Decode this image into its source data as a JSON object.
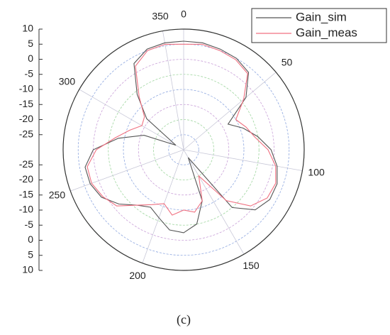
{
  "chart_data": {
    "type": "polar",
    "caption": "(c)",
    "theta": [
      0,
      10,
      20,
      30,
      40,
      50,
      60,
      70,
      80,
      90,
      100,
      110,
      120,
      130,
      140,
      150,
      160,
      170,
      180,
      190,
      200,
      210,
      220,
      230,
      240,
      250,
      260,
      270,
      280,
      290,
      300,
      310,
      320,
      330,
      340,
      350
    ],
    "series": [
      {
        "name": "Gain_sim",
        "color": "#555555",
        "values": [
          6,
          6,
          5.5,
          5,
          3.5,
          -3,
          -13,
          -9,
          -5,
          -1,
          1.5,
          3,
          3,
          1,
          -5,
          -27,
          -12,
          -5,
          -2.5,
          -3,
          -6,
          -8,
          -6,
          -2,
          1.5,
          3,
          3.2,
          0,
          -8,
          -16,
          -27,
          -14,
          -6,
          3,
          5.5,
          6
        ]
      },
      {
        "name": "Gain_meas",
        "color": "#f07080",
        "values": [
          5,
          5.5,
          5,
          4.5,
          3,
          -4,
          -10,
          -8,
          -6,
          -2,
          1,
          2.5,
          2,
          -1,
          -8,
          -20,
          -12,
          -9,
          -10,
          -8,
          -11,
          -9,
          -6,
          -1,
          1,
          2.5,
          2.5,
          -1,
          -7,
          -11,
          -14,
          -13,
          -7,
          2,
          5,
          5.5
        ]
      }
    ],
    "rlim": [
      -30,
      10
    ],
    "rticks": [
      -25,
      -20,
      -15,
      -10,
      -5,
      0,
      5,
      10
    ],
    "thetaticks": [
      0,
      50,
      100,
      150,
      200,
      250,
      300,
      350
    ],
    "grid": true,
    "legend": "top-right"
  }
}
